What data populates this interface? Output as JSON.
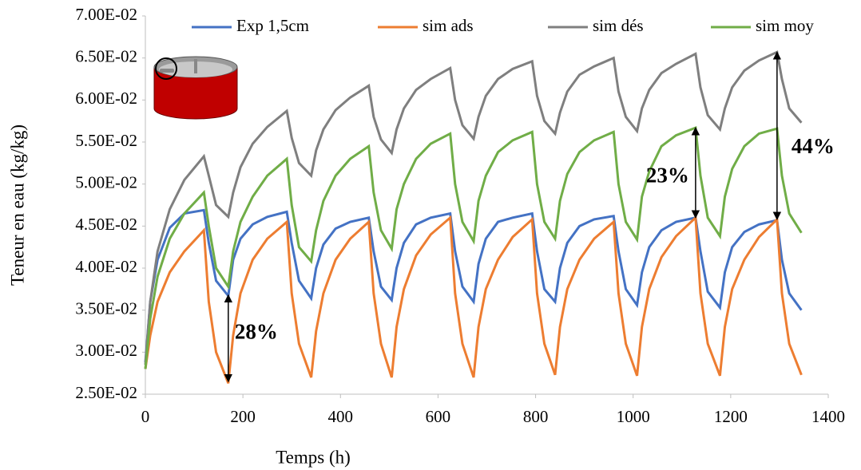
{
  "chart_data": {
    "type": "line",
    "xlabel": "Temps (h)",
    "ylabel": "Teneur en eau (kg/kg)",
    "x": [
      0,
      10,
      25,
      50,
      80,
      120,
      130,
      145,
      170,
      180,
      195,
      220,
      250,
      290,
      300,
      315,
      340,
      350,
      365,
      390,
      420,
      458,
      468,
      483,
      505,
      515,
      530,
      555,
      585,
      625,
      635,
      650,
      673,
      683,
      698,
      723,
      753,
      793,
      803,
      818,
      840,
      850,
      865,
      890,
      920,
      960,
      970,
      985,
      1008,
      1018,
      1033,
      1058,
      1088,
      1128,
      1138,
      1153,
      1178,
      1188,
      1203,
      1228,
      1258,
      1295,
      1305,
      1320,
      1345
    ],
    "series": [
      {
        "name": "Exp 1,5cm",
        "color": "#4472c4",
        "values": [
          0.0288,
          0.036,
          0.041,
          0.0448,
          0.0465,
          0.0469,
          0.043,
          0.0385,
          0.0367,
          0.041,
          0.0435,
          0.0452,
          0.0461,
          0.0467,
          0.043,
          0.0385,
          0.0364,
          0.04,
          0.0428,
          0.0447,
          0.0455,
          0.046,
          0.042,
          0.0378,
          0.0362,
          0.04,
          0.043,
          0.0452,
          0.046,
          0.0465,
          0.042,
          0.0378,
          0.036,
          0.0405,
          0.0435,
          0.0455,
          0.046,
          0.0465,
          0.042,
          0.0375,
          0.036,
          0.04,
          0.043,
          0.045,
          0.0458,
          0.0462,
          0.042,
          0.0375,
          0.0356,
          0.0395,
          0.0425,
          0.0445,
          0.0455,
          0.046,
          0.042,
          0.0372,
          0.0353,
          0.0395,
          0.0425,
          0.0443,
          0.0452,
          0.0457,
          0.041,
          0.037,
          0.035
        ]
      },
      {
        "name": "sim ads",
        "color": "#ed7d31",
        "values": [
          0.028,
          0.032,
          0.036,
          0.0395,
          0.042,
          0.0445,
          0.036,
          0.03,
          0.0263,
          0.032,
          0.037,
          0.041,
          0.0435,
          0.0455,
          0.037,
          0.031,
          0.027,
          0.0325,
          0.037,
          0.041,
          0.0435,
          0.0455,
          0.037,
          0.031,
          0.027,
          0.033,
          0.0375,
          0.0415,
          0.044,
          0.046,
          0.037,
          0.031,
          0.027,
          0.033,
          0.0375,
          0.041,
          0.0437,
          0.0458,
          0.037,
          0.031,
          0.0273,
          0.033,
          0.0375,
          0.041,
          0.0435,
          0.0455,
          0.037,
          0.031,
          0.0272,
          0.033,
          0.0375,
          0.0413,
          0.0438,
          0.046,
          0.037,
          0.031,
          0.0272,
          0.033,
          0.0375,
          0.041,
          0.0437,
          0.0458,
          0.037,
          0.031,
          0.0273
        ]
      },
      {
        "name": "sim dés",
        "color": "#7f7f7f",
        "values": [
          0.0285,
          0.036,
          0.042,
          0.047,
          0.0505,
          0.0533,
          0.051,
          0.0475,
          0.0461,
          0.049,
          0.052,
          0.0548,
          0.0568,
          0.0587,
          0.0555,
          0.0525,
          0.051,
          0.054,
          0.0565,
          0.0588,
          0.0603,
          0.0617,
          0.058,
          0.0553,
          0.0537,
          0.0565,
          0.059,
          0.0612,
          0.0625,
          0.0638,
          0.06,
          0.057,
          0.0554,
          0.058,
          0.0605,
          0.0625,
          0.0637,
          0.0646,
          0.0605,
          0.0575,
          0.056,
          0.0585,
          0.061,
          0.063,
          0.064,
          0.065,
          0.061,
          0.058,
          0.0563,
          0.059,
          0.0612,
          0.0632,
          0.0643,
          0.0655,
          0.0615,
          0.0582,
          0.0565,
          0.059,
          0.0615,
          0.0635,
          0.0647,
          0.0657,
          0.0625,
          0.059,
          0.0573
        ]
      },
      {
        "name": "sim moy",
        "color": "#70ad47",
        "values": [
          0.028,
          0.034,
          0.039,
          0.0435,
          0.0465,
          0.049,
          0.045,
          0.04,
          0.0378,
          0.042,
          0.0455,
          0.0485,
          0.051,
          0.053,
          0.0475,
          0.0425,
          0.0408,
          0.0445,
          0.048,
          0.051,
          0.053,
          0.0545,
          0.049,
          0.0445,
          0.0423,
          0.047,
          0.05,
          0.053,
          0.0548,
          0.056,
          0.05,
          0.0455,
          0.0432,
          0.048,
          0.051,
          0.0538,
          0.0552,
          0.0562,
          0.05,
          0.0455,
          0.0435,
          0.048,
          0.0512,
          0.0538,
          0.0552,
          0.0562,
          0.05,
          0.0455,
          0.0434,
          0.0485,
          0.0515,
          0.0545,
          0.0558,
          0.0567,
          0.051,
          0.046,
          0.0438,
          0.0485,
          0.0518,
          0.0545,
          0.056,
          0.0566,
          0.051,
          0.0465,
          0.0442
        ]
      }
    ],
    "xlim": [
      0,
      1400
    ],
    "xticks": [
      0,
      200,
      400,
      600,
      800,
      1000,
      1200,
      1400
    ],
    "ylim": [
      0.025,
      0.07
    ],
    "yticks": [
      {
        "value": 0.025,
        "label": "2.50E-02"
      },
      {
        "value": 0.03,
        "label": "3.00E-02"
      },
      {
        "value": 0.035,
        "label": "3.50E-02"
      },
      {
        "value": 0.04,
        "label": "4.00E-02"
      },
      {
        "value": 0.045,
        "label": "4.50E-02"
      },
      {
        "value": 0.05,
        "label": "5.00E-02"
      },
      {
        "value": 0.055,
        "label": "5.50E-02"
      },
      {
        "value": 0.06,
        "label": "6.00E-02"
      },
      {
        "value": 0.065,
        "label": "6.50E-02"
      },
      {
        "value": 0.07,
        "label": "7.00E-02"
      }
    ],
    "grid": false,
    "legend": "top",
    "annotations": [
      {
        "text": "28%",
        "x": 170,
        "y1": 0.0265,
        "y2": 0.0368
      },
      {
        "text": "23%",
        "x": 1128,
        "y1": 0.046,
        "y2": 0.0567
      },
      {
        "text": "44%",
        "x": 1295,
        "y1": 0.0458,
        "y2": 0.0657
      }
    ]
  }
}
